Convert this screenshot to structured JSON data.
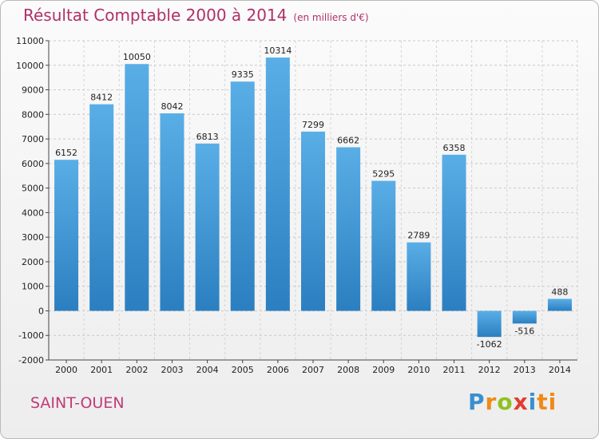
{
  "header": {
    "title": "Résultat Comptable 2000 à 2014",
    "unit": "(en milliers d'€)"
  },
  "footer": {
    "city": "SAINT-OUEN",
    "logo": [
      "P",
      "r",
      "o",
      "x",
      "i",
      "ti"
    ]
  },
  "colors": {
    "bar_light": "#5aaee6",
    "bar_dark": "#2b7fc0",
    "title": "#b0306a"
  },
  "chart_data": {
    "type": "bar",
    "title": "Résultat Comptable 2000 à 2014",
    "ylabel": "(en milliers d'€)",
    "xlabel": "",
    "categories": [
      "2000",
      "2001",
      "2002",
      "2003",
      "2004",
      "2005",
      "2006",
      "2007",
      "2008",
      "2009",
      "2010",
      "2011",
      "2012",
      "2013",
      "2014"
    ],
    "values": [
      6152,
      8412,
      10050,
      8042,
      6813,
      9335,
      10314,
      7299,
      6662,
      5295,
      2789,
      6358,
      -1062,
      -516,
      488
    ],
    "labels": [
      "6152",
      "8412",
      "10050",
      "8042",
      "6813",
      "9335",
      "10314",
      "7299",
      "6662",
      "5295",
      "2789",
      "6358",
      "-1062",
      "-516",
      "488"
    ],
    "ylim": [
      -2000,
      11000
    ],
    "yticks": [
      -2000,
      -1000,
      0,
      1000,
      2000,
      3000,
      4000,
      5000,
      6000,
      7000,
      8000,
      9000,
      10000,
      11000
    ],
    "ytick_labels": [
      "-2000",
      "-1000",
      "0",
      "1000",
      "2000",
      "3000",
      "4000",
      "5000",
      "6000",
      "7000",
      "8000",
      "9000",
      "10000",
      "11000"
    ],
    "grid": true
  }
}
